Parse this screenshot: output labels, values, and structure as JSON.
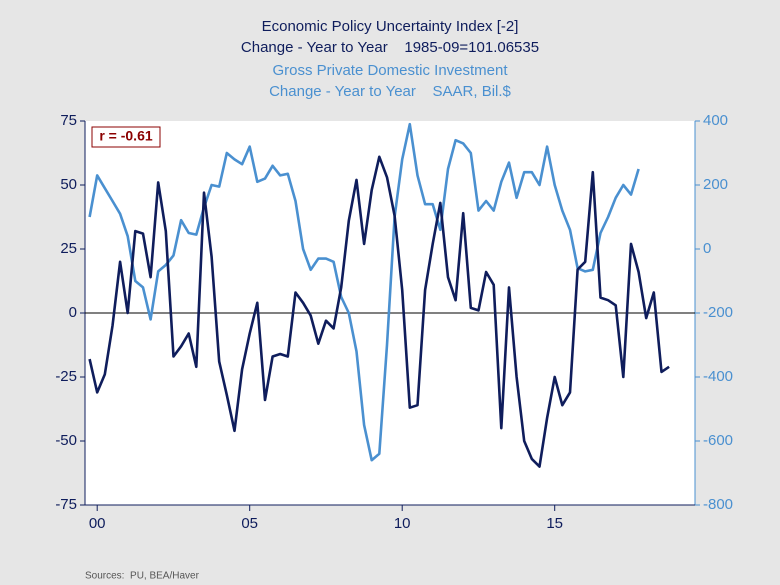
{
  "chart_data": {
    "type": "line",
    "annotation": "r = -0.61",
    "source": "Sources:  PU, BEA/Haver",
    "xlim": [
      1999.6,
      2019.6
    ],
    "xticks": [
      {
        "value": 2000,
        "label": "00"
      },
      {
        "value": 2005,
        "label": "05"
      },
      {
        "value": 2010,
        "label": "10"
      },
      {
        "value": 2015,
        "label": "15"
      }
    ],
    "ylim": [
      -75,
      75
    ],
    "yticks": [
      -75,
      -50,
      -25,
      0,
      25,
      50,
      75
    ],
    "y2lim": [
      -800,
      400
    ],
    "y2ticks": [
      -800,
      -600,
      -400,
      -200,
      0,
      200,
      400
    ],
    "zero_line": true,
    "series": [
      {
        "name": "Economic Policy Uncertainty Index [-2]",
        "unit_label": "Change - Year to Year    1985-09=101.06535",
        "color": "#0f1d5c",
        "axis": "y",
        "x": [
          1999.75,
          2000,
          2000.25,
          2000.5,
          2000.75,
          2001,
          2001.25,
          2001.5,
          2001.75,
          2002,
          2002.25,
          2002.5,
          2002.75,
          2003,
          2003.25,
          2003.5,
          2003.75,
          2004,
          2004.25,
          2004.5,
          2004.75,
          2005,
          2005.25,
          2005.5,
          2005.75,
          2006,
          2006.25,
          2006.5,
          2006.75,
          2007,
          2007.25,
          2007.5,
          2007.75,
          2008,
          2008.25,
          2008.5,
          2008.75,
          2009,
          2009.25,
          2009.5,
          2009.75,
          2010,
          2010.25,
          2010.5,
          2010.75,
          2011,
          2011.25,
          2011.5,
          2011.75,
          2012,
          2012.25,
          2012.5,
          2012.75,
          2013,
          2013.25,
          2013.5,
          2013.75,
          2014,
          2014.25,
          2014.5,
          2014.75,
          2015,
          2015.25,
          2015.5,
          2015.75,
          2016,
          2016.25,
          2016.5,
          2016.75,
          2017,
          2017.25,
          2017.5,
          2017.75,
          2018,
          2018.25,
          2018.5,
          2018.75
        ],
        "values": [
          -18,
          -31,
          -24,
          -5,
          20,
          0,
          32,
          31,
          14,
          51,
          32,
          -17,
          -13,
          -8,
          -21,
          47,
          22,
          -19,
          -32,
          -46,
          -22,
          -8,
          4,
          -34,
          -17,
          -16,
          -17,
          8,
          4,
          -1,
          -12,
          -3,
          -6,
          10,
          36,
          52,
          27,
          48,
          61,
          53,
          38,
          9,
          -37,
          -36,
          9,
          27,
          43,
          14,
          5,
          39,
          2,
          1,
          16,
          11,
          -45,
          10,
          -25,
          -50,
          -57,
          -60,
          -41,
          -25,
          -36,
          -31,
          17,
          20,
          55,
          6,
          5,
          3,
          -25,
          27,
          16,
          -2,
          8,
          -23,
          -21
        ]
      },
      {
        "name": "Gross Private Domestic Investment",
        "unit_label": "Change - Year to Year    SAAR, Bil.$",
        "color": "#4a90d0",
        "axis": "y2",
        "x": [
          1999.75,
          2000,
          2000.25,
          2000.5,
          2000.75,
          2001,
          2001.25,
          2001.5,
          2001.75,
          2002,
          2002.25,
          2002.5,
          2002.75,
          2003,
          2003.25,
          2003.5,
          2003.75,
          2004,
          2004.25,
          2004.5,
          2004.75,
          2005,
          2005.25,
          2005.5,
          2005.75,
          2006,
          2006.25,
          2006.5,
          2006.75,
          2007,
          2007.25,
          2007.5,
          2007.75,
          2008,
          2008.25,
          2008.5,
          2008.75,
          2009,
          2009.25,
          2009.5,
          2009.75,
          2010,
          2010.25,
          2010.5,
          2010.75,
          2011,
          2011.25,
          2011.5,
          2011.75,
          2012,
          2012.25,
          2012.5,
          2012.75,
          2013,
          2013.25,
          2013.5,
          2013.75,
          2014,
          2014.25,
          2014.5,
          2014.75,
          2015,
          2015.25,
          2015.5,
          2015.75,
          2016,
          2016.25,
          2016.5,
          2016.75,
          2017,
          2017.25,
          2017.5,
          2017.75
        ],
        "values": [
          100,
          230,
          190,
          150,
          110,
          40,
          -100,
          -120,
          -220,
          -70,
          -50,
          -20,
          90,
          50,
          45,
          130,
          200,
          195,
          300,
          280,
          265,
          320,
          210,
          220,
          260,
          230,
          235,
          150,
          0,
          -65,
          -30,
          -30,
          -40,
          -150,
          -200,
          -320,
          -550,
          -660,
          -640,
          -300,
          100,
          280,
          390,
          230,
          140,
          140,
          60,
          250,
          340,
          330,
          300,
          120,
          150,
          120,
          210,
          270,
          160,
          240,
          240,
          200,
          320,
          200,
          120,
          60,
          -60,
          -70,
          -65,
          50,
          100,
          160,
          200,
          170,
          250
        ]
      }
    ]
  }
}
